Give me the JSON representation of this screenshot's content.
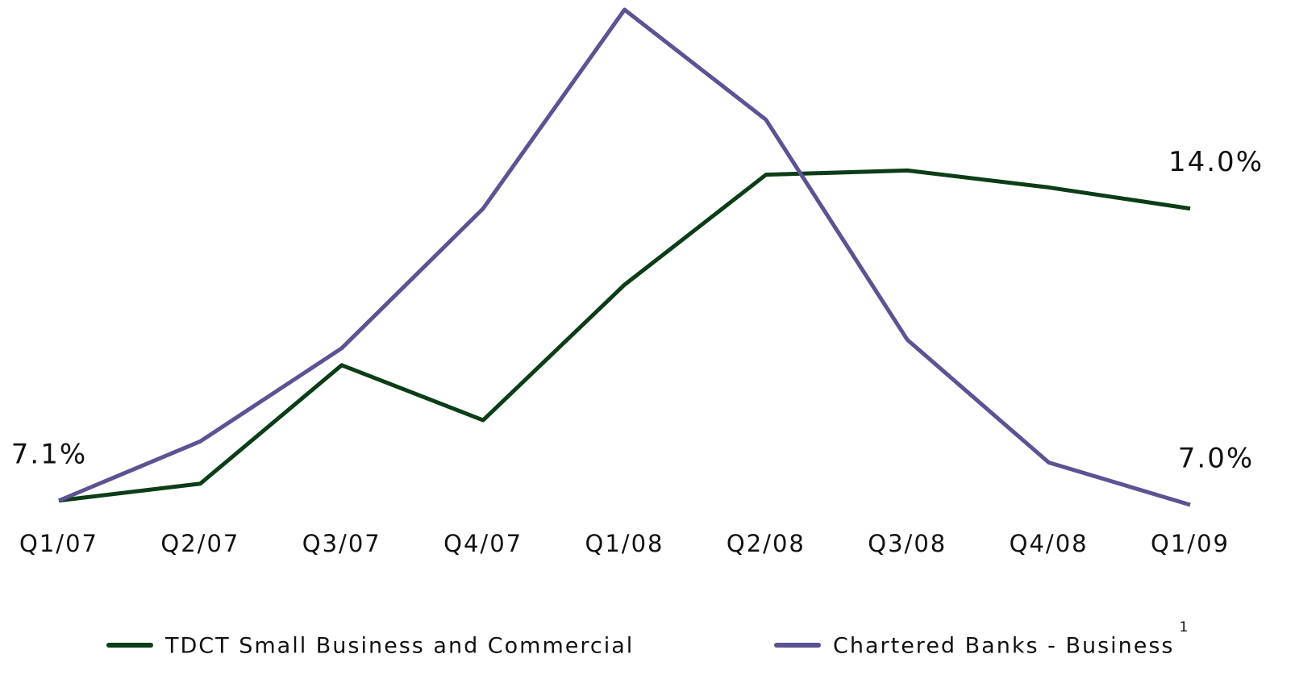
{
  "chart_data": {
    "type": "line",
    "categories": [
      "Q1/07",
      "Q2/07",
      "Q3/07",
      "Q4/07",
      "Q1/08",
      "Q2/08",
      "Q3/08",
      "Q4/08",
      "Q1/09"
    ],
    "series": [
      {
        "name": "TDCT Small Business and Commercial",
        "color": "#0b3d17",
        "values": [
          7.1,
          7.5,
          10.3,
          9.0,
          12.2,
          14.8,
          14.9,
          14.5,
          14.0
        ],
        "value_labels": [
          "7.1%",
          null,
          null,
          null,
          null,
          null,
          null,
          null,
          "14.0%"
        ]
      },
      {
        "name": "Chartered Banks - Business",
        "color": "#5b5393",
        "footnote_marker": "1",
        "values": [
          7.1,
          8.5,
          10.7,
          14.0,
          18.7,
          16.1,
          10.9,
          8.0,
          7.0
        ],
        "value_labels": [
          null,
          null,
          null,
          null,
          null,
          null,
          null,
          null,
          "7.0%"
        ]
      }
    ]
  }
}
